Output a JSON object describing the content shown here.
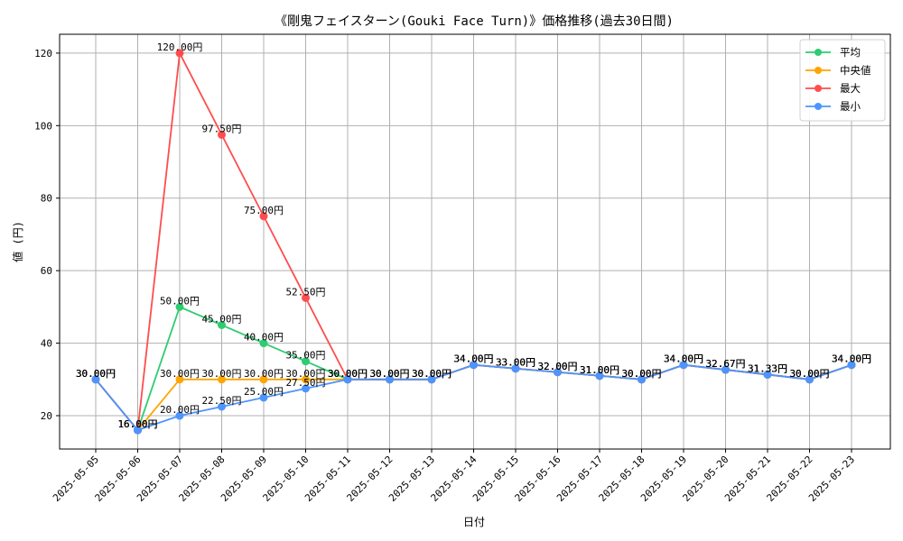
{
  "chart_data": {
    "type": "line",
    "title": "《剛鬼フェイスターン(Gouki Face Turn)》価格推移(過去30日間)",
    "xlabel": "日付",
    "ylabel": "値 (円)",
    "ylim": [
      10.8,
      125.2
    ],
    "y_ticks": [
      20,
      40,
      60,
      80,
      100,
      120
    ],
    "grid": true,
    "legend_position": "top-right",
    "label_suffix": "円",
    "categories": [
      "2025-05-05",
      "2025-05-06",
      "2025-05-07",
      "2025-05-08",
      "2025-05-09",
      "2025-05-10",
      "2025-05-11",
      "2025-05-12",
      "2025-05-13",
      "2025-05-14",
      "2025-05-15",
      "2025-05-16",
      "2025-05-17",
      "2025-05-18",
      "2025-05-19",
      "2025-05-20",
      "2025-05-21",
      "2025-05-22",
      "2025-05-23"
    ],
    "series": [
      {
        "name": "平均",
        "color": "#2ecc71",
        "values": [
          30.0,
          16.0,
          50.0,
          45.0,
          40.0,
          35.0,
          30.0,
          30.0,
          30.0,
          34.0,
          33.0,
          32.0,
          31.0,
          30.0,
          34.0,
          32.67,
          31.33,
          30.0,
          34.0
        ]
      },
      {
        "name": "中央値",
        "color": "#ffa500",
        "values": [
          30.0,
          16.0,
          30.0,
          30.0,
          30.0,
          30.0,
          30.0,
          30.0,
          30.0,
          34.0,
          33.0,
          32.0,
          31.0,
          30.0,
          34.0,
          32.67,
          31.33,
          30.0,
          34.0
        ]
      },
      {
        "name": "最大",
        "color": "#ff4d4d",
        "values": [
          30.0,
          16.0,
          120.0,
          97.5,
          75.0,
          52.5,
          30.0,
          30.0,
          30.0,
          34.0,
          33.0,
          32.0,
          31.0,
          30.0,
          34.0,
          32.67,
          31.33,
          30.0,
          34.0
        ]
      },
      {
        "name": "最小",
        "color": "#4d94ff",
        "values": [
          30.0,
          16.0,
          20.0,
          22.5,
          25.0,
          27.5,
          30.0,
          30.0,
          30.0,
          34.0,
          33.0,
          32.0,
          31.0,
          30.0,
          34.0,
          32.67,
          31.33,
          30.0,
          34.0
        ]
      }
    ]
  }
}
